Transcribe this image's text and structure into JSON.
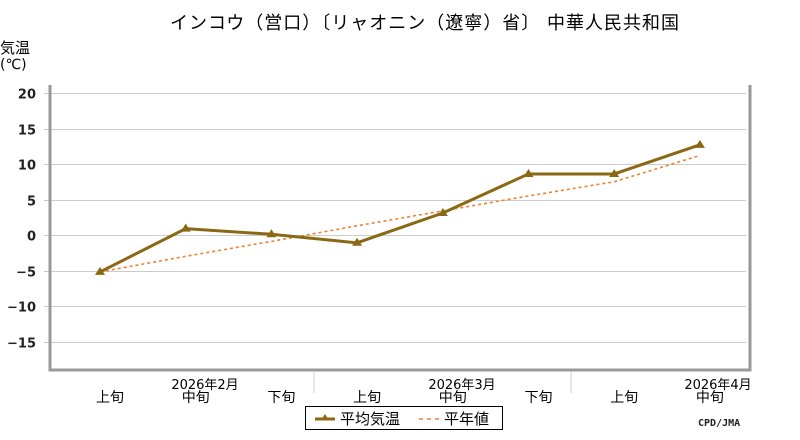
{
  "title": "インコウ（営口）〔リャオニン（遼寧）省〕 中華人民共和国",
  "y_axis": {
    "label": "気温",
    "unit": "(℃)"
  },
  "legend": {
    "items": [
      {
        "label": "平均気温",
        "color": "#8b6914",
        "style": "solid-triangle"
      },
      {
        "label": "平年値",
        "color": "#f08030",
        "style": "dashed"
      }
    ]
  },
  "credit": "CPD/JMA",
  "colors": {
    "series": "#8b6914",
    "normal": "#f08030",
    "grid": "#cccccc",
    "axis": "#999999"
  },
  "chart_data": {
    "type": "line",
    "title": "インコウ（営口）〔リャオニン（遼寧）省〕 中華人民共和国",
    "xlabel": "",
    "ylabel": "気温(℃)",
    "ylim": [
      -19,
      21
    ],
    "yticks": [
      20,
      15,
      10,
      5,
      0,
      -5,
      -10,
      -15
    ],
    "grid": true,
    "legend_position": "bottom",
    "categories": [
      "2026年2月 上旬",
      "2026年2月 中旬",
      "2026年2月 下旬",
      "2026年3月 上旬",
      "2026年3月 中旬",
      "2026年3月 下旬",
      "2026年4月 上旬",
      "2026年4月 中旬"
    ],
    "x_tick_labels": [
      "上旬",
      "中旬",
      "下旬",
      "上旬",
      "中旬",
      "下旬",
      "上旬",
      "中旬"
    ],
    "month_labels": [
      "2026年2月",
      "2026年3月",
      "2026年4月"
    ],
    "series": [
      {
        "name": "平均気温",
        "values": [
          -5.2,
          0.9,
          0.1,
          -1.1,
          3.1,
          8.6,
          8.6,
          12.7
        ]
      },
      {
        "name": "平年値",
        "values": [
          -5.2,
          -3.0,
          -0.9,
          1.3,
          3.4,
          5.5,
          7.5,
          11.2
        ]
      }
    ]
  }
}
